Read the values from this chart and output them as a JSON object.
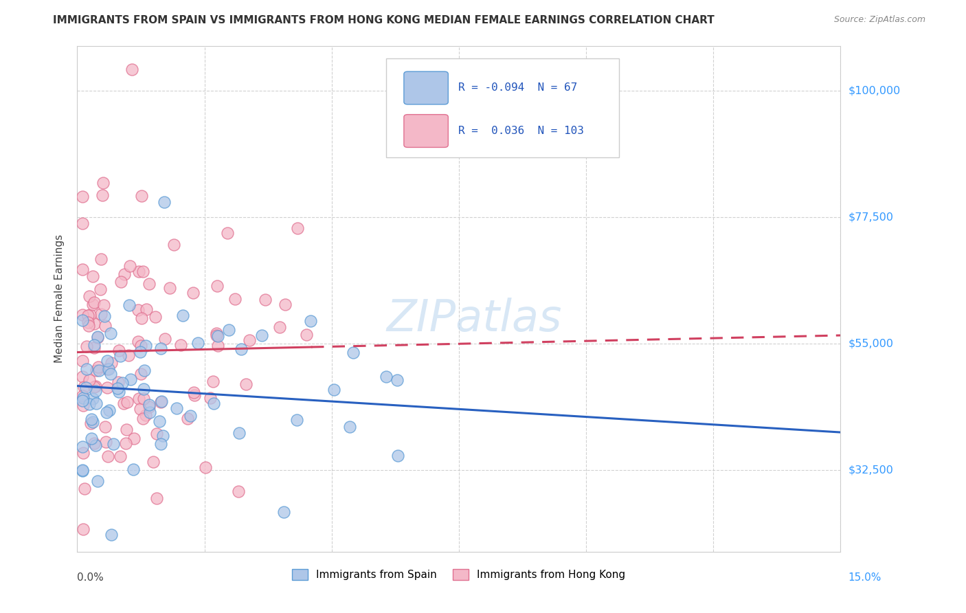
{
  "title": "IMMIGRANTS FROM SPAIN VS IMMIGRANTS FROM HONG KONG MEDIAN FEMALE EARNINGS CORRELATION CHART",
  "source": "Source: ZipAtlas.com",
  "ylabel": "Median Female Earnings",
  "yticks": [
    32500,
    55000,
    77500,
    100000
  ],
  "ytick_labels": [
    "$32,500",
    "$55,000",
    "$77,500",
    "$100,000"
  ],
  "xlim": [
    0.0,
    0.15
  ],
  "ylim": [
    18000,
    108000
  ],
  "legend_R1": "-0.094",
  "legend_N1": "67",
  "legend_R2": "0.036",
  "legend_N2": "103",
  "spain_color": "#aec6e8",
  "spain_edge": "#5b9bd5",
  "hk_color": "#f4b8c8",
  "hk_edge": "#e07090",
  "spain_line_color": "#2860c0",
  "hk_line_color": "#d04060",
  "hk_line_dash_color": "#d04060",
  "watermark": "ZIPatlas",
  "background_color": "#ffffff",
  "grid_color": "#cccccc",
  "title_color": "#333333",
  "source_color": "#888888",
  "ylabel_color": "#444444",
  "right_label_color": "#3399ff",
  "legend_text_color": "#2255bb",
  "seed": 42,
  "spain_intercept": 47500,
  "spain_slope": -55000,
  "hk_intercept": 53500,
  "hk_slope": 20000
}
